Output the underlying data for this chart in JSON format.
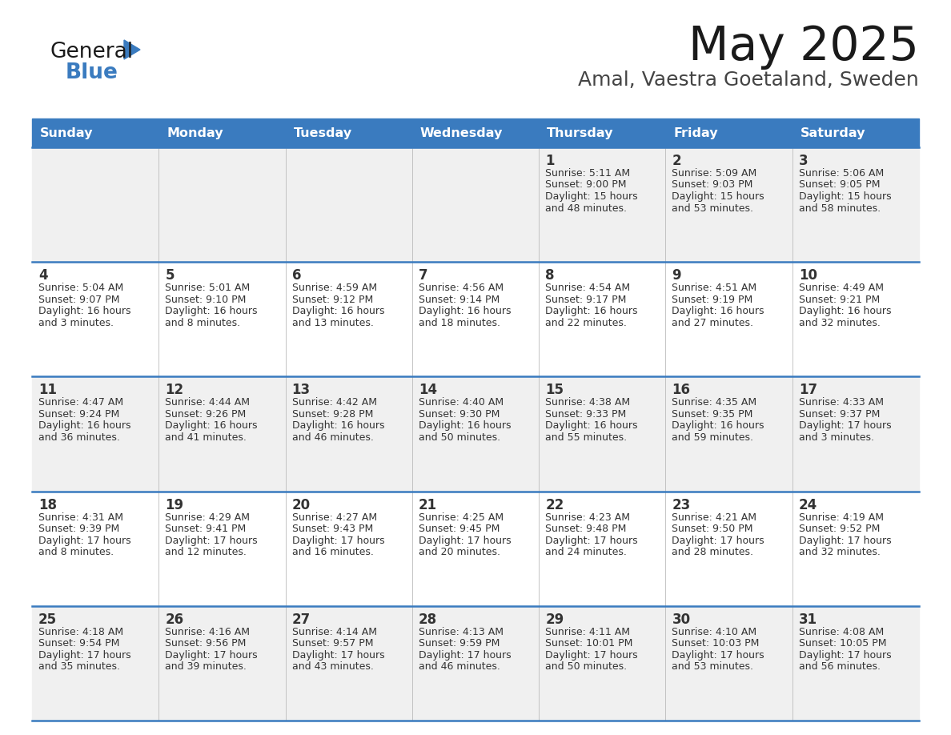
{
  "title": "May 2025",
  "subtitle": "Amal, Vaestra Goetaland, Sweden",
  "days_of_week": [
    "Sunday",
    "Monday",
    "Tuesday",
    "Wednesday",
    "Thursday",
    "Friday",
    "Saturday"
  ],
  "header_bg": "#3a7bbf",
  "header_text": "#ffffff",
  "row_bg_odd": "#f0f0f0",
  "row_bg_even": "#ffffff",
  "cell_text": "#333333",
  "day_num_color": "#333333",
  "divider_color": "#3a7bbf",
  "calendar_data": [
    [
      null,
      null,
      null,
      null,
      {
        "day": 1,
        "sunrise": "5:11 AM",
        "sunset": "9:00 PM",
        "daylight": "15 hours",
        "daylight2": "and 48 minutes."
      },
      {
        "day": 2,
        "sunrise": "5:09 AM",
        "sunset": "9:03 PM",
        "daylight": "15 hours",
        "daylight2": "and 53 minutes."
      },
      {
        "day": 3,
        "sunrise": "5:06 AM",
        "sunset": "9:05 PM",
        "daylight": "15 hours",
        "daylight2": "and 58 minutes."
      }
    ],
    [
      {
        "day": 4,
        "sunrise": "5:04 AM",
        "sunset": "9:07 PM",
        "daylight": "16 hours",
        "daylight2": "and 3 minutes."
      },
      {
        "day": 5,
        "sunrise": "5:01 AM",
        "sunset": "9:10 PM",
        "daylight": "16 hours",
        "daylight2": "and 8 minutes."
      },
      {
        "day": 6,
        "sunrise": "4:59 AM",
        "sunset": "9:12 PM",
        "daylight": "16 hours",
        "daylight2": "and 13 minutes."
      },
      {
        "day": 7,
        "sunrise": "4:56 AM",
        "sunset": "9:14 PM",
        "daylight": "16 hours",
        "daylight2": "and 18 minutes."
      },
      {
        "day": 8,
        "sunrise": "4:54 AM",
        "sunset": "9:17 PM",
        "daylight": "16 hours",
        "daylight2": "and 22 minutes."
      },
      {
        "day": 9,
        "sunrise": "4:51 AM",
        "sunset": "9:19 PM",
        "daylight": "16 hours",
        "daylight2": "and 27 minutes."
      },
      {
        "day": 10,
        "sunrise": "4:49 AM",
        "sunset": "9:21 PM",
        "daylight": "16 hours",
        "daylight2": "and 32 minutes."
      }
    ],
    [
      {
        "day": 11,
        "sunrise": "4:47 AM",
        "sunset": "9:24 PM",
        "daylight": "16 hours",
        "daylight2": "and 36 minutes."
      },
      {
        "day": 12,
        "sunrise": "4:44 AM",
        "sunset": "9:26 PM",
        "daylight": "16 hours",
        "daylight2": "and 41 minutes."
      },
      {
        "day": 13,
        "sunrise": "4:42 AM",
        "sunset": "9:28 PM",
        "daylight": "16 hours",
        "daylight2": "and 46 minutes."
      },
      {
        "day": 14,
        "sunrise": "4:40 AM",
        "sunset": "9:30 PM",
        "daylight": "16 hours",
        "daylight2": "and 50 minutes."
      },
      {
        "day": 15,
        "sunrise": "4:38 AM",
        "sunset": "9:33 PM",
        "daylight": "16 hours",
        "daylight2": "and 55 minutes."
      },
      {
        "day": 16,
        "sunrise": "4:35 AM",
        "sunset": "9:35 PM",
        "daylight": "16 hours",
        "daylight2": "and 59 minutes."
      },
      {
        "day": 17,
        "sunrise": "4:33 AM",
        "sunset": "9:37 PM",
        "daylight": "17 hours",
        "daylight2": "and 3 minutes."
      }
    ],
    [
      {
        "day": 18,
        "sunrise": "4:31 AM",
        "sunset": "9:39 PM",
        "daylight": "17 hours",
        "daylight2": "and 8 minutes."
      },
      {
        "day": 19,
        "sunrise": "4:29 AM",
        "sunset": "9:41 PM",
        "daylight": "17 hours",
        "daylight2": "and 12 minutes."
      },
      {
        "day": 20,
        "sunrise": "4:27 AM",
        "sunset": "9:43 PM",
        "daylight": "17 hours",
        "daylight2": "and 16 minutes."
      },
      {
        "day": 21,
        "sunrise": "4:25 AM",
        "sunset": "9:45 PM",
        "daylight": "17 hours",
        "daylight2": "and 20 minutes."
      },
      {
        "day": 22,
        "sunrise": "4:23 AM",
        "sunset": "9:48 PM",
        "daylight": "17 hours",
        "daylight2": "and 24 minutes."
      },
      {
        "day": 23,
        "sunrise": "4:21 AM",
        "sunset": "9:50 PM",
        "daylight": "17 hours",
        "daylight2": "and 28 minutes."
      },
      {
        "day": 24,
        "sunrise": "4:19 AM",
        "sunset": "9:52 PM",
        "daylight": "17 hours",
        "daylight2": "and 32 minutes."
      }
    ],
    [
      {
        "day": 25,
        "sunrise": "4:18 AM",
        "sunset": "9:54 PM",
        "daylight": "17 hours",
        "daylight2": "and 35 minutes."
      },
      {
        "day": 26,
        "sunrise": "4:16 AM",
        "sunset": "9:56 PM",
        "daylight": "17 hours",
        "daylight2": "and 39 minutes."
      },
      {
        "day": 27,
        "sunrise": "4:14 AM",
        "sunset": "9:57 PM",
        "daylight": "17 hours",
        "daylight2": "and 43 minutes."
      },
      {
        "day": 28,
        "sunrise": "4:13 AM",
        "sunset": "9:59 PM",
        "daylight": "17 hours",
        "daylight2": "and 46 minutes."
      },
      {
        "day": 29,
        "sunrise": "4:11 AM",
        "sunset": "10:01 PM",
        "daylight": "17 hours",
        "daylight2": "and 50 minutes."
      },
      {
        "day": 30,
        "sunrise": "4:10 AM",
        "sunset": "10:03 PM",
        "daylight": "17 hours",
        "daylight2": "and 53 minutes."
      },
      {
        "day": 31,
        "sunrise": "4:08 AM",
        "sunset": "10:05 PM",
        "daylight": "17 hours",
        "daylight2": "and 56 minutes."
      }
    ]
  ]
}
